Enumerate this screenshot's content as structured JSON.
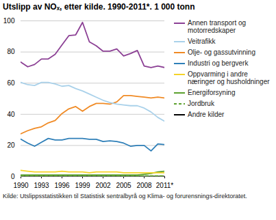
{
  "chart_data": {
    "type": "line",
    "title": "Utslipp av NOₓ, etter kilde. 1990-2011*. 1 000 tonn",
    "caption": "Kilde: Utslippsstatistikken til Statistisk sentralbyrå og Klima- og forurensnings-direktoratet.",
    "x": [
      1990,
      1991,
      1992,
      1993,
      1994,
      1995,
      1996,
      1997,
      1998,
      1999,
      2000,
      2001,
      2002,
      2003,
      2004,
      2005,
      2006,
      2007,
      2008,
      2009,
      2010,
      2011
    ],
    "xlim": [
      1990,
      2011
    ],
    "xticks": [
      1990,
      1993,
      1996,
      1999,
      2002,
      2005,
      2008,
      {
        "value": 2011,
        "label": "2011*"
      }
    ],
    "ylim": [
      0,
      100
    ],
    "yticks": [
      0,
      20,
      40,
      60,
      80,
      100
    ],
    "grid": true,
    "legend": "right",
    "series": [
      {
        "name": "Annen transport og motorredskaper",
        "color": "#8b3f94",
        "values": [
          73.5,
          70.5,
          72,
          75.5,
          75.5,
          78.5,
          84.5,
          90.5,
          91,
          99,
          86.5,
          84,
          80.5,
          80.5,
          82,
          77.5,
          79,
          81,
          71,
          70,
          71,
          70
        ]
      },
      {
        "name": "Veitrafikk",
        "color": "#a9d1ea",
        "values": [
          60.5,
          59,
          58.5,
          60.5,
          60.5,
          59.5,
          58,
          58.5,
          56.5,
          55,
          53,
          51,
          49,
          47.5,
          46.5,
          46,
          45.5,
          45.5,
          44,
          41.5,
          38,
          35.5
        ]
      },
      {
        "name": "Olje- og gassutvinning",
        "color": "#f08a24",
        "values": [
          27.5,
          29.5,
          31,
          32,
          34.5,
          36,
          40.5,
          43.5,
          45,
          42,
          45,
          47,
          47,
          46.5,
          48,
          52,
          52,
          51.5,
          51,
          50.5,
          51,
          50.5
        ]
      },
      {
        "name": "Industri og bergverk",
        "color": "#2e7fb8",
        "values": [
          24,
          21.5,
          19.5,
          22,
          24.5,
          23.5,
          23.5,
          24.5,
          24.5,
          24.5,
          24,
          24,
          22.5,
          23,
          22.5,
          21.5,
          19.5,
          20,
          20,
          16.5,
          21,
          20.5
        ]
      },
      {
        "name": "Oppvarming i andre næringer og husholdninger",
        "color": "#f5d327",
        "values": [
          4,
          3.5,
          3,
          3,
          3,
          3,
          3.5,
          3,
          3,
          3,
          2.5,
          3,
          3,
          3,
          3,
          2.5,
          2.5,
          2.5,
          2.5,
          2.5,
          2.5,
          2.5
        ]
      },
      {
        "name": "Energiforsyning",
        "color": "#5aa02c",
        "values": [
          1,
          1,
          1,
          1,
          1,
          1,
          1,
          1,
          1,
          1,
          1,
          1,
          1,
          1,
          1,
          1,
          1,
          1,
          1.5,
          2,
          3,
          3.5
        ]
      },
      {
        "name": "Jordbruk",
        "color": "#5aa02c",
        "line_style": "dashed",
        "values": [
          0.5,
          0.5,
          0.5,
          0.5,
          0.5,
          0.5,
          0.5,
          0.5,
          0.5,
          0.5,
          0.5,
          0.5,
          0.5,
          0.5,
          0.5,
          0.5,
          0.5,
          0.5,
          0.5,
          0.5,
          0.5,
          0.5
        ]
      },
      {
        "name": "Andre kilder",
        "color": "#000000",
        "values": [
          0.2,
          0.2,
          0.2,
          0.2,
          0.2,
          0.2,
          0.2,
          0.2,
          0.2,
          0.2,
          0.2,
          0.2,
          0.2,
          0.2,
          0.2,
          0.2,
          0.2,
          0.2,
          0.2,
          0.2,
          0.2,
          0.2
        ]
      }
    ]
  }
}
